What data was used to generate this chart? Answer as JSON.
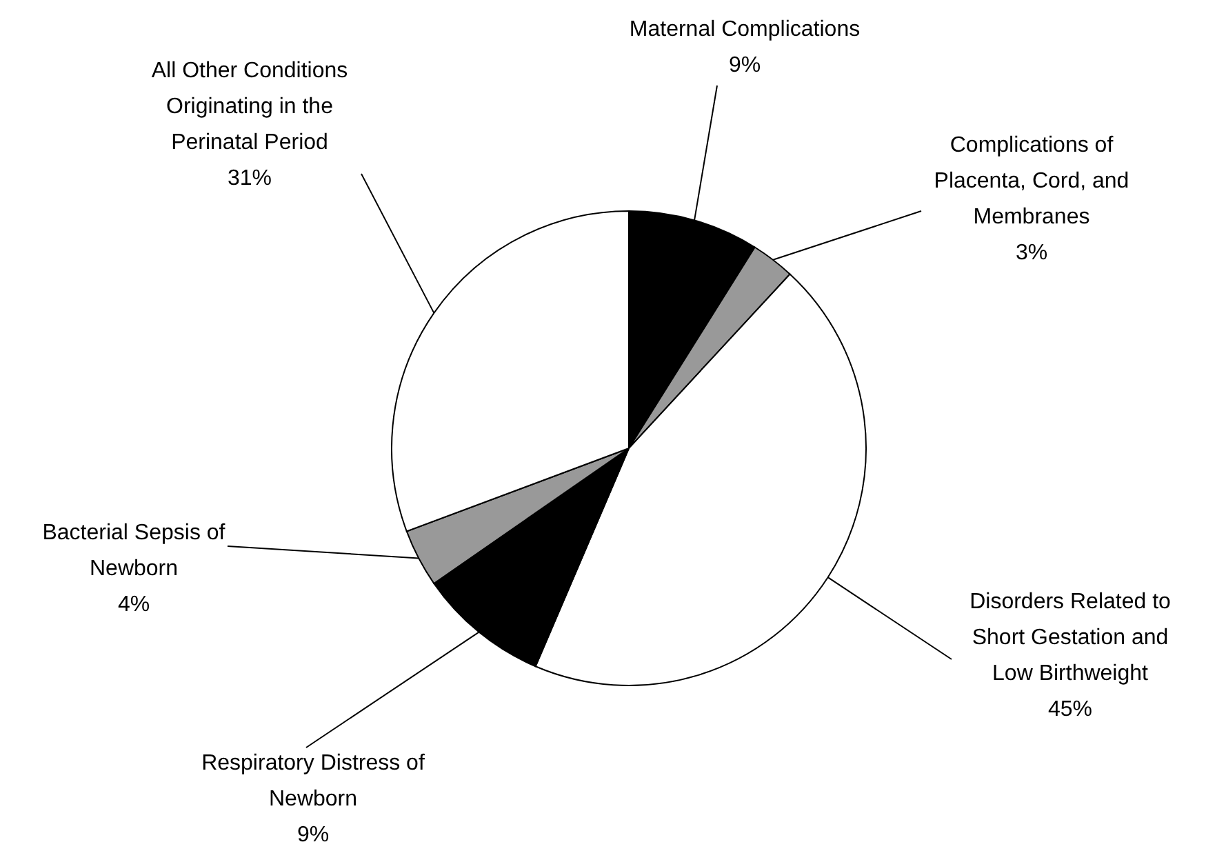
{
  "chart_data": {
    "type": "pie",
    "categories": [
      "Maternal Complications",
      "Complications of Placenta, Cord, and Membranes",
      "Disorders Related to Short Gestation and Low Birthweight",
      "Respiratory Distress of Newborn",
      "Bacterial Sepsis of Newborn",
      "All Other Conditions Originating in the Perinatal Period"
    ],
    "values": [
      9,
      3,
      45,
      9,
      4,
      31
    ],
    "value_labels": [
      "9%",
      "3%",
      "45%",
      "9%",
      "4%",
      "31%"
    ],
    "colors": [
      "#000000",
      "#999999",
      "#ffffff",
      "#000000",
      "#999999",
      "#ffffff"
    ]
  }
}
